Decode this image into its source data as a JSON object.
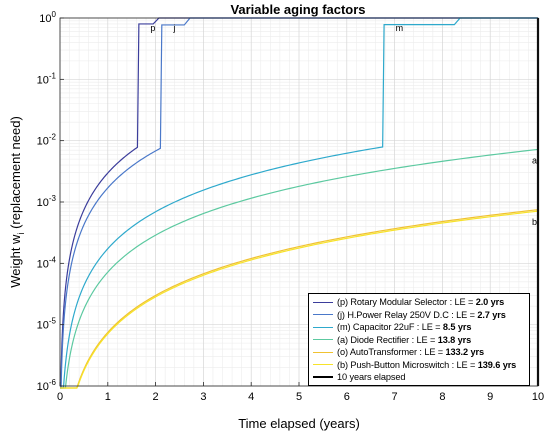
{
  "chart_data": {
    "type": "line",
    "title": "Variable aging factors",
    "xlabel": "Time elapsed (years)",
    "ylabel_main": "Weight w",
    "ylabel_sub": "i",
    "ylabel_tail": " (replacement need)",
    "xlim": [
      0,
      10
    ],
    "ylim": [
      1e-06,
      1
    ],
    "yscale": "log",
    "grid": true,
    "x_ticks": [
      "0",
      "1",
      "2",
      "3",
      "4",
      "5",
      "6",
      "7",
      "8",
      "9",
      "10"
    ],
    "y_ticks": [
      {
        "base": "10",
        "exp": "-6"
      },
      {
        "base": "10",
        "exp": "-5"
      },
      {
        "base": "10",
        "exp": "-4"
      },
      {
        "base": "10",
        "exp": "-3"
      },
      {
        "base": "10",
        "exp": "-2"
      },
      {
        "base": "10",
        "exp": "-1"
      },
      {
        "base": "10",
        "exp": "0"
      }
    ],
    "legend_position": "bottom-right",
    "series": [
      {
        "name": "(p) Rotary Modular Selector : LE = ",
        "le": "2.0 yrs",
        "short": "p",
        "color": "#3b3d9b",
        "life": 2.0,
        "jump_at": 1.62,
        "pre_jump_value": 0.0078,
        "post_jump_value": 0.8,
        "end_label_x": 1.95
      },
      {
        "name": "(j) H.Power Relay 250V D.C  : LE = ",
        "le": "2.7 yrs",
        "short": "j",
        "color": "#4a78c9",
        "life": 2.7,
        "jump_at": 2.1,
        "pre_jump_value": 0.0075,
        "post_jump_value": 0.77,
        "end_label_x": 2.6
      },
      {
        "name": "(m) Capacitor 22uF : LE = ",
        "le": "8.5 yrs",
        "short": "m",
        "color": "#2ea9cc",
        "life": 8.5,
        "jump_at": 6.75,
        "pre_jump_value": 0.0079,
        "post_jump_value": 0.78,
        "end_label_x": 8.25
      },
      {
        "name": "(a) Diode Rectifier : LE = ",
        "le": "13.8 yrs",
        "short": "a",
        "color": "#5cc9a0",
        "life": 13.8,
        "end_value": 0.0072
      },
      {
        "name": "(o) AutoTransformer : LE = ",
        "le": "133.2 yrs",
        "short": "o",
        "color": "#f0c231",
        "life": 133.2,
        "end_value": 0.00075
      },
      {
        "name": "(b) Push-Button Microswitch : LE = ",
        "le": "139.6 yrs",
        "short": "b",
        "color": "#f7e32a",
        "life": 139.6,
        "end_value": 0.00071
      },
      {
        "name": "10 years elapsed",
        "short": "",
        "color": "#000000",
        "vertical_at": 10
      }
    ],
    "end_labels": [
      {
        "text": "a",
        "value": 0.0072
      },
      {
        "text": "b",
        "value": 0.00072
      }
    ]
  }
}
